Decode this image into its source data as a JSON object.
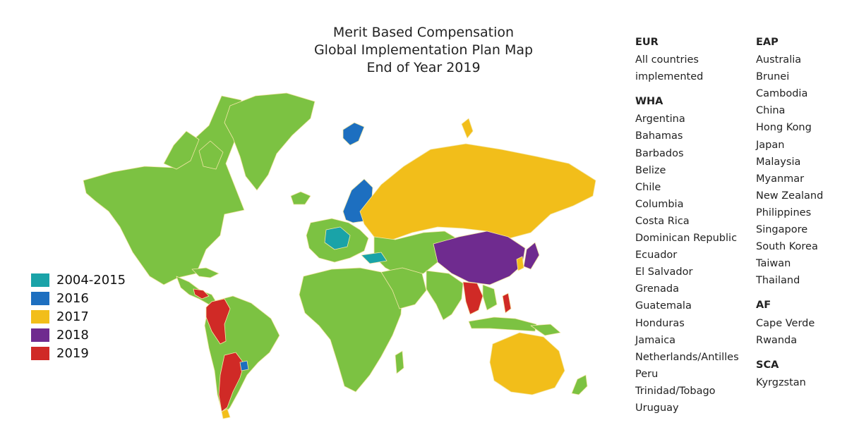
{
  "map": {
    "title_lines": [
      "Merit Based Compensation",
      "Global Implementation Plan Map",
      "End of Year 2019"
    ],
    "colors": {
      "c2004_2015": "#1aa3a8",
      "c2016": "#1d6fc0",
      "c2017": "#f2be1a",
      "c2018": "#6f2b8f",
      "c2019": "#d02a26",
      "default": "#7cc242",
      "border": "#f3e6a6"
    }
  },
  "legend": [
    {
      "label": "2004-2015",
      "color": "#1aa3a8"
    },
    {
      "label": "2016",
      "color": "#1d6fc0"
    },
    {
      "label": "2017",
      "color": "#f2be1a"
    },
    {
      "label": "2018",
      "color": "#6f2b8f"
    },
    {
      "label": "2019",
      "color": "#d02a26"
    }
  ],
  "regions": {
    "eur": {
      "title": "EUR",
      "lines": [
        "All countries",
        "implemented"
      ]
    },
    "wha": {
      "title": "WHA",
      "lines": [
        "Argentina",
        "Bahamas",
        "Barbados",
        "Belize",
        "Chile",
        "Columbia",
        "Costa Rica",
        "Dominican Republic",
        "Ecuador",
        "El Salvador",
        "Grenada",
        "Guatemala",
        "Honduras",
        "Jamaica",
        "Netherlands/Antilles",
        "Peru",
        "Trinidad/Tobago",
        "Uruguay"
      ]
    },
    "eap": {
      "title": "EAP",
      "lines": [
        "Australia",
        "Brunei",
        "Cambodia",
        "China",
        "Hong Kong",
        "Japan",
        "Malaysia",
        "Myanmar",
        "New Zealand",
        "Philippines",
        "Singapore",
        "South Korea",
        "Taiwan",
        "Thailand"
      ]
    },
    "af": {
      "title": "AF",
      "lines": [
        "Cape Verde",
        "Rwanda"
      ]
    },
    "sca": {
      "title": "SCA",
      "lines": [
        "Kyrgzstan"
      ]
    }
  }
}
